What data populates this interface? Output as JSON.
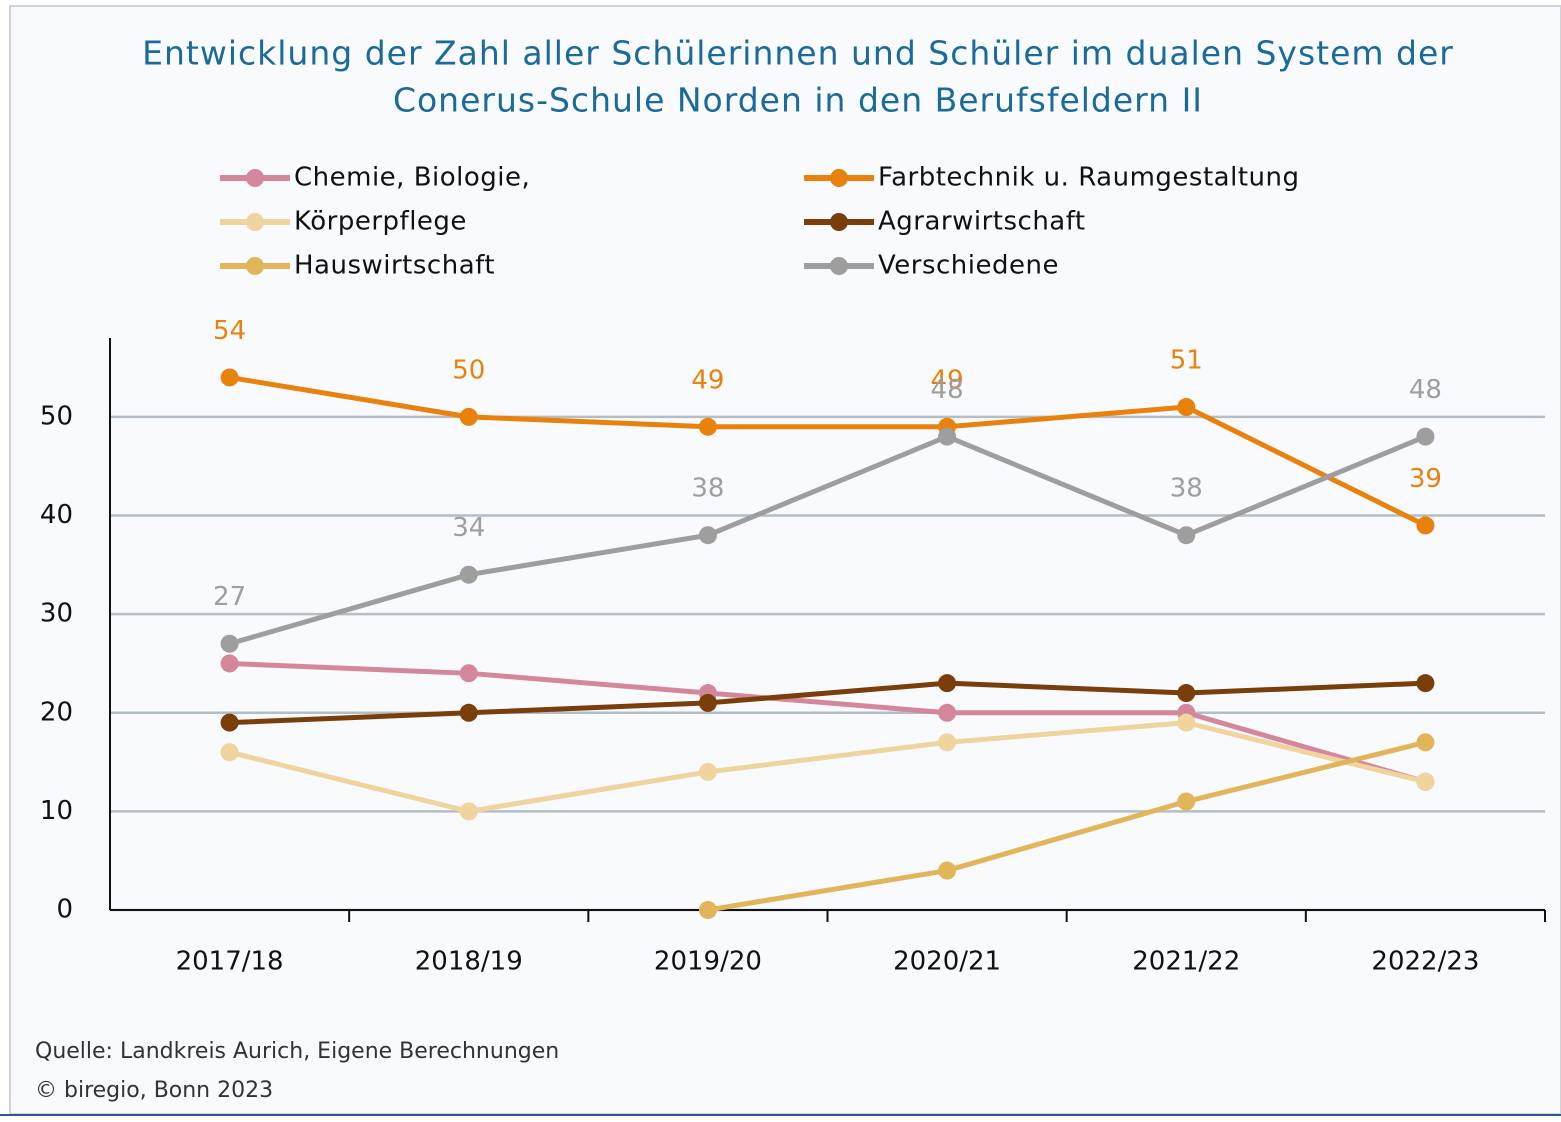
{
  "chart_data": {
    "type": "line",
    "title": [
      "Entwicklung der Zahl aller Schülerinnen und Schüler im dualen System der",
      "Conerus-Schule Norden in den Berufsfeldern II"
    ],
    "categories": [
      "2017/18",
      "2018/19",
      "2019/20",
      "2020/21",
      "2021/22",
      "2022/23"
    ],
    "series": [
      {
        "name": "Chemie, Biologie,",
        "color": "#d4879a",
        "values": [
          25,
          24,
          22,
          20,
          20,
          13
        ],
        "labels": false
      },
      {
        "name": "Farbtechnik u. Raumgestaltung",
        "color": "#e8820c",
        "values": [
          54,
          50,
          49,
          49,
          51,
          39
        ],
        "labels": true
      },
      {
        "name": "Körperpflege",
        "color": "#f0d49e",
        "values": [
          16,
          10,
          14,
          17,
          19,
          13
        ],
        "labels": false
      },
      {
        "name": "Agrarwirtschaft",
        "color": "#7a3e0a",
        "values": [
          19,
          20,
          21,
          23,
          22,
          23
        ],
        "labels": false
      },
      {
        "name": "Hauswirtschaft",
        "color": "#e3b55a",
        "values": [
          null,
          null,
          0,
          4,
          11,
          17
        ],
        "labels": false
      },
      {
        "name": "Verschiedene",
        "color": "#9e9e9e",
        "values": [
          27,
          34,
          38,
          48,
          38,
          48
        ],
        "labels": true
      }
    ],
    "ylim": [
      0,
      58
    ],
    "yticks": [
      0,
      10,
      20,
      30,
      40,
      50
    ],
    "grid": true,
    "source": "Quelle: Landkreis Aurich, Eigene Berechnungen",
    "copyright": "© biregio, Bonn 2023"
  }
}
